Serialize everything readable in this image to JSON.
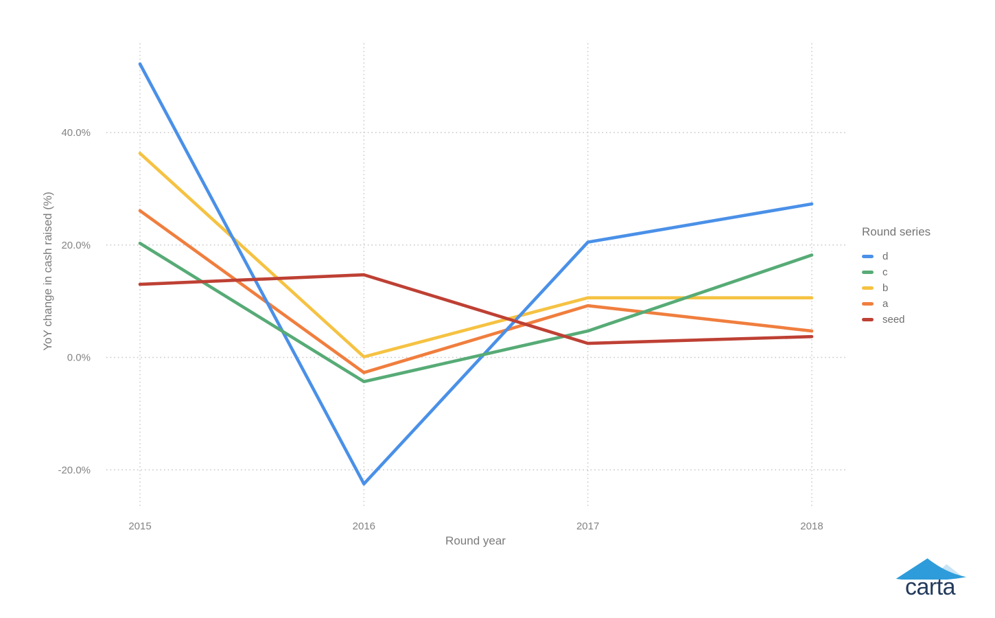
{
  "chart_data": {
    "type": "line",
    "categories": [
      "2015",
      "2016",
      "2017",
      "2018"
    ],
    "series": [
      {
        "name": "d",
        "color": "#4A90E8",
        "values": [
          52.2,
          -22.5,
          20.5,
          27.3
        ]
      },
      {
        "name": "c",
        "color": "#57AB76",
        "values": [
          20.3,
          -4.3,
          4.7,
          18.2
        ]
      },
      {
        "name": "b",
        "color": "#F5C242",
        "values": [
          36.3,
          0.1,
          10.6,
          10.6
        ]
      },
      {
        "name": "a",
        "color": "#F07E3E",
        "values": [
          26.1,
          -2.7,
          9.2,
          4.7
        ]
      },
      {
        "name": "seed",
        "color": "#BE4034",
        "values": [
          13.0,
          14.7,
          2.5,
          3.7
        ]
      }
    ],
    "draw_order": [
      "b",
      "a",
      "d",
      "c",
      "seed"
    ],
    "title": "",
    "xlabel": "Round year",
    "ylabel": "YoY change in cash raised (%)",
    "yticks": [
      {
        "value": 40,
        "label": "40.0%"
      },
      {
        "value": 20,
        "label": "20.0%"
      },
      {
        "value": 0,
        "label": "0.0%"
      },
      {
        "value": -20,
        "label": "-20.0%"
      }
    ],
    "ylim": [
      -27,
      55
    ],
    "grid": "dotted",
    "gridline_color": "#c6c6c6",
    "legend_title": "Round series",
    "legend_position": "right"
  },
  "branding": {
    "logo_text": "carta",
    "logo_color_primary": "#2E9CDB",
    "logo_color_light": "#C9E4F4",
    "logo_text_color": "#233A5C"
  }
}
